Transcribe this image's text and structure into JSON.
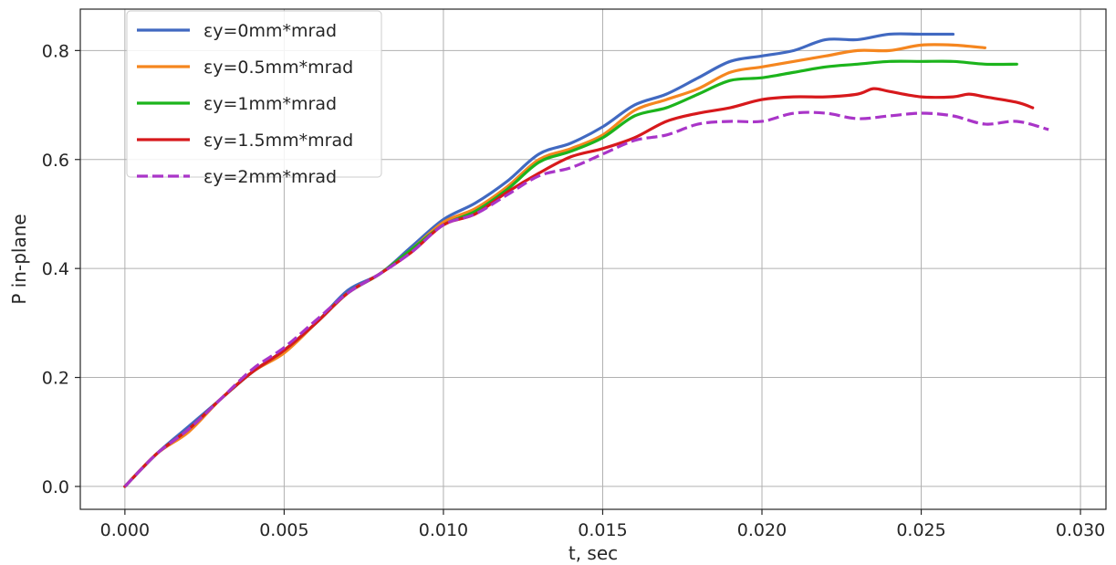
{
  "chart_data": {
    "type": "line",
    "xlabel": "t, sec",
    "ylabel": "P in-plane",
    "xlim": [
      -0.0014,
      0.0308
    ],
    "ylim": [
      -0.042,
      0.876
    ],
    "xticks": [
      "0.000",
      "0.005",
      "0.010",
      "0.015",
      "0.020",
      "0.025",
      "0.030"
    ],
    "xtick_values": [
      0,
      0.005,
      0.01,
      0.015,
      0.02,
      0.025,
      0.03
    ],
    "yticks": [
      "0.0",
      "0.2",
      "0.4",
      "0.6",
      "0.8"
    ],
    "ytick_values": [
      0,
      0.2,
      0.4,
      0.6,
      0.8
    ],
    "grid": true,
    "legend_position": "upper-left",
    "series": [
      {
        "name": "εy=0mm*mrad",
        "color": "#4169c1",
        "dash": "solid",
        "x": [
          0,
          0.001,
          0.002,
          0.003,
          0.004,
          0.005,
          0.006,
          0.007,
          0.008,
          0.009,
          0.01,
          0.011,
          0.012,
          0.013,
          0.014,
          0.015,
          0.016,
          0.017,
          0.018,
          0.019,
          0.02,
          0.021,
          0.022,
          0.023,
          0.024,
          0.025,
          0.026
        ],
        "y": [
          0,
          0.06,
          0.11,
          0.16,
          0.21,
          0.25,
          0.3,
          0.36,
          0.39,
          0.44,
          0.49,
          0.52,
          0.56,
          0.61,
          0.63,
          0.66,
          0.7,
          0.72,
          0.75,
          0.78,
          0.79,
          0.8,
          0.82,
          0.82,
          0.83,
          0.83,
          0.83
        ]
      },
      {
        "name": "εy=0.5mm*mrad",
        "color": "#f5861f",
        "dash": "solid",
        "x": [
          0,
          0.001,
          0.002,
          0.003,
          0.004,
          0.005,
          0.006,
          0.007,
          0.008,
          0.009,
          0.01,
          0.011,
          0.012,
          0.013,
          0.014,
          0.015,
          0.016,
          0.017,
          0.018,
          0.019,
          0.02,
          0.021,
          0.022,
          0.023,
          0.024,
          0.025,
          0.026,
          0.027
        ],
        "y": [
          0,
          0.06,
          0.1,
          0.16,
          0.21,
          0.245,
          0.3,
          0.355,
          0.39,
          0.435,
          0.485,
          0.51,
          0.55,
          0.6,
          0.62,
          0.645,
          0.69,
          0.71,
          0.73,
          0.76,
          0.77,
          0.78,
          0.79,
          0.8,
          0.8,
          0.81,
          0.81,
          0.805
        ]
      },
      {
        "name": "εy=1mm*mrad",
        "color": "#1cb41c",
        "dash": "solid",
        "x": [
          0,
          0.001,
          0.002,
          0.003,
          0.004,
          0.005,
          0.006,
          0.007,
          0.008,
          0.009,
          0.01,
          0.011,
          0.012,
          0.013,
          0.014,
          0.015,
          0.016,
          0.017,
          0.018,
          0.019,
          0.02,
          0.021,
          0.022,
          0.023,
          0.024,
          0.025,
          0.026,
          0.027,
          0.028
        ],
        "y": [
          0,
          0.06,
          0.105,
          0.16,
          0.21,
          0.25,
          0.3,
          0.355,
          0.39,
          0.435,
          0.48,
          0.505,
          0.545,
          0.595,
          0.615,
          0.64,
          0.68,
          0.695,
          0.72,
          0.745,
          0.75,
          0.76,
          0.77,
          0.775,
          0.78,
          0.78,
          0.78,
          0.775,
          0.775
        ]
      },
      {
        "name": "εy=1.5mm*mrad",
        "color": "#d7191c",
        "dash": "solid",
        "x": [
          0,
          0.001,
          0.002,
          0.003,
          0.004,
          0.005,
          0.006,
          0.007,
          0.008,
          0.009,
          0.01,
          0.011,
          0.012,
          0.013,
          0.014,
          0.015,
          0.016,
          0.017,
          0.018,
          0.019,
          0.02,
          0.021,
          0.022,
          0.023,
          0.0235,
          0.024,
          0.025,
          0.026,
          0.0265,
          0.027,
          0.028,
          0.0285
        ],
        "y": [
          0,
          0.06,
          0.105,
          0.16,
          0.21,
          0.25,
          0.3,
          0.355,
          0.39,
          0.43,
          0.48,
          0.5,
          0.54,
          0.575,
          0.605,
          0.62,
          0.64,
          0.67,
          0.685,
          0.695,
          0.71,
          0.715,
          0.715,
          0.72,
          0.73,
          0.725,
          0.715,
          0.715,
          0.72,
          0.715,
          0.705,
          0.695
        ]
      },
      {
        "name": "εy=2mm*mrad",
        "color": "#a935c8",
        "dash": "dashed",
        "x": [
          0,
          0.001,
          0.002,
          0.003,
          0.004,
          0.005,
          0.006,
          0.007,
          0.008,
          0.009,
          0.01,
          0.011,
          0.012,
          0.013,
          0.014,
          0.015,
          0.016,
          0.017,
          0.018,
          0.019,
          0.02,
          0.021,
          0.022,
          0.023,
          0.024,
          0.025,
          0.026,
          0.027,
          0.028,
          0.029
        ],
        "y": [
          0,
          0.06,
          0.105,
          0.16,
          0.215,
          0.255,
          0.305,
          0.355,
          0.39,
          0.43,
          0.48,
          0.5,
          0.535,
          0.57,
          0.585,
          0.61,
          0.635,
          0.645,
          0.665,
          0.67,
          0.67,
          0.685,
          0.685,
          0.675,
          0.68,
          0.685,
          0.68,
          0.665,
          0.67,
          0.655
        ]
      }
    ]
  }
}
